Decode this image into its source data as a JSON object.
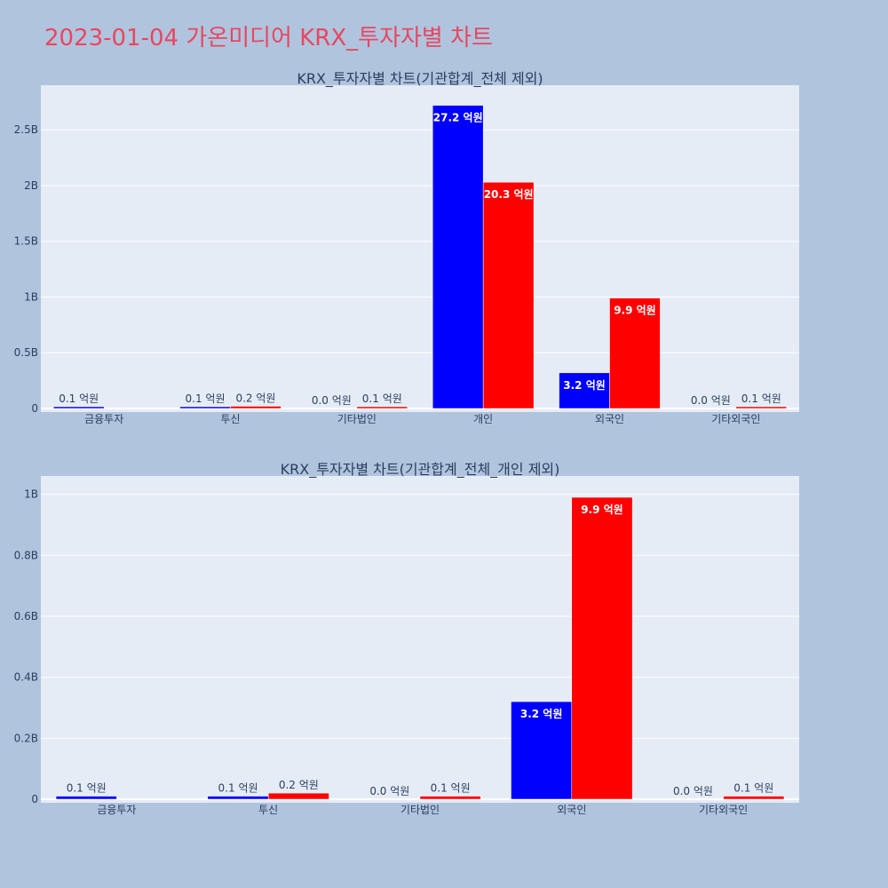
{
  "page_title": "2023-01-04 가온미디어 KRX_투자자별 차트",
  "colors": {
    "series_a": "#0000ff",
    "series_b": "#ff0000",
    "plot_bg": "#e5ecf6",
    "page_bg": "#b0c4de",
    "title": "#e8475f"
  },
  "chart_data": [
    {
      "type": "bar",
      "title": "KRX_투자자별 차트(기관합계_전체 제외)",
      "categories": [
        "금융투자",
        "투신",
        "기타법인",
        "개인",
        "외국인",
        "기타외국인"
      ],
      "series": [
        {
          "color": "#0000ff",
          "values": [
            10000000,
            10000000,
            0,
            2720000000,
            320000000,
            0
          ],
          "labels": [
            "0.1 억원",
            "0.1 억원",
            "0.0 억원",
            "27.2 억원",
            "3.2 억원",
            "0.0 억원"
          ]
        },
        {
          "color": "#ff0000",
          "values": [
            0,
            20000000,
            10000000,
            2030000000,
            990000000,
            10000000
          ],
          "labels": [
            "",
            "0.2 억원",
            "0.1 억원",
            "20.3 억원",
            "9.9 억원",
            "0.1 억원"
          ]
        }
      ],
      "ylim": [
        0,
        2900000000
      ],
      "yticks": [
        0,
        500000000,
        1000000000,
        1500000000,
        2000000000,
        2500000000
      ],
      "ytick_labels": [
        "0",
        "0.5B",
        "1B",
        "1.5B",
        "2B",
        "2.5B"
      ],
      "xlabel": "",
      "ylabel": "",
      "grid": true
    },
    {
      "type": "bar",
      "title": "KRX_투자자별 차트(기관합계_전체_개인 제외)",
      "categories": [
        "금융투자",
        "투신",
        "기타법인",
        "외국인",
        "기타외국인"
      ],
      "series": [
        {
          "color": "#0000ff",
          "values": [
            10000000,
            10000000,
            0,
            320000000,
            0
          ],
          "labels": [
            "0.1 억원",
            "0.1 억원",
            "0.0 억원",
            "3.2 억원",
            "0.0 억원"
          ]
        },
        {
          "color": "#ff0000",
          "values": [
            0,
            20000000,
            10000000,
            990000000,
            10000000
          ],
          "labels": [
            "",
            "0.2 억원",
            "0.1 억원",
            "9.9 억원",
            "0.1 억원"
          ]
        }
      ],
      "ylim": [
        0,
        1060000000
      ],
      "yticks": [
        0,
        200000000,
        400000000,
        600000000,
        800000000,
        1000000000
      ],
      "ytick_labels": [
        "0",
        "0.2B",
        "0.4B",
        "0.6B",
        "0.8B",
        "1B"
      ],
      "xlabel": "",
      "ylabel": "",
      "grid": true
    }
  ]
}
